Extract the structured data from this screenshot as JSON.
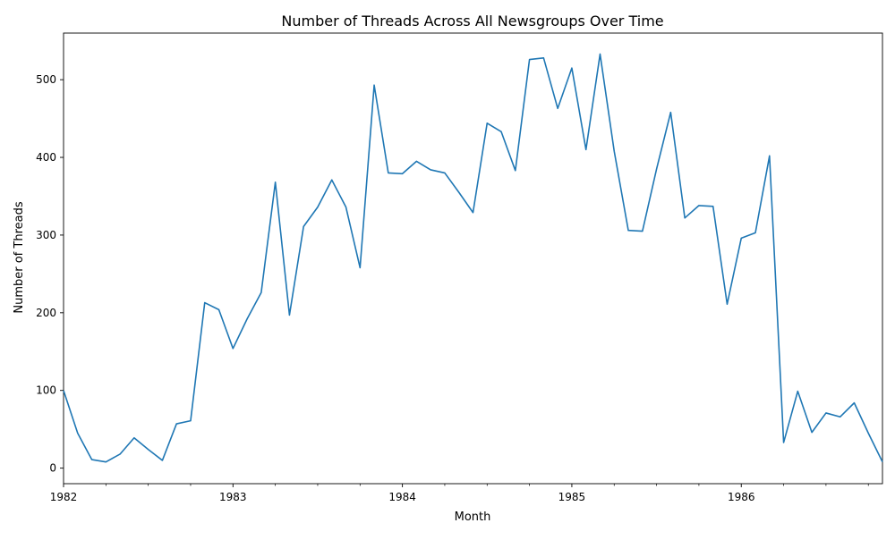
{
  "chart_data": {
    "type": "line",
    "title": "Number of Threads Across All Newsgroups Over Time",
    "xlabel": "Month",
    "ylabel": "Number of Threads",
    "x_start": "1982-01",
    "x_end": "1986-11",
    "ylim": [
      -20,
      560
    ],
    "y_ticks": [
      0,
      100,
      200,
      300,
      400,
      500
    ],
    "x_ticks": [
      "1982",
      "1983",
      "1984",
      "1985",
      "1986"
    ],
    "grid": false,
    "legend": "none",
    "series": [
      {
        "color": "#1f77b4",
        "x": [
          "1982-01",
          "1982-02",
          "1982-03",
          "1982-04",
          "1982-05",
          "1982-06",
          "1982-07",
          "1982-08",
          "1982-09",
          "1982-10",
          "1982-11",
          "1982-12",
          "1983-01",
          "1983-02",
          "1983-03",
          "1983-04",
          "1983-05",
          "1983-06",
          "1983-07",
          "1983-08",
          "1983-09",
          "1983-10",
          "1983-11",
          "1983-12",
          "1984-01",
          "1984-02",
          "1984-03",
          "1984-04",
          "1984-05",
          "1984-06",
          "1984-07",
          "1984-08",
          "1984-09",
          "1984-10",
          "1984-11",
          "1984-12",
          "1985-01",
          "1985-02",
          "1985-03",
          "1985-04",
          "1985-05",
          "1985-06",
          "1985-07",
          "1985-08",
          "1985-09",
          "1985-10",
          "1985-11",
          "1985-12",
          "1986-01",
          "1986-02",
          "1986-03",
          "1986-04",
          "1986-05",
          "1986-06",
          "1986-07",
          "1986-08",
          "1986-09",
          "1986-10",
          "1986-11"
        ],
        "values": [
          100,
          45,
          11,
          8,
          18,
          39,
          24,
          10,
          57,
          61,
          213,
          204,
          154,
          192,
          226,
          368,
          197,
          311,
          336,
          371,
          336,
          258,
          493,
          380,
          379,
          395,
          384,
          380,
          355,
          329,
          444,
          433,
          383,
          526,
          528,
          463,
          515,
          410,
          533,
          408,
          306,
          305,
          385,
          458,
          322,
          338,
          337,
          211,
          296,
          303,
          402,
          33,
          99,
          46,
          71,
          66,
          84,
          45,
          8
        ]
      }
    ]
  }
}
